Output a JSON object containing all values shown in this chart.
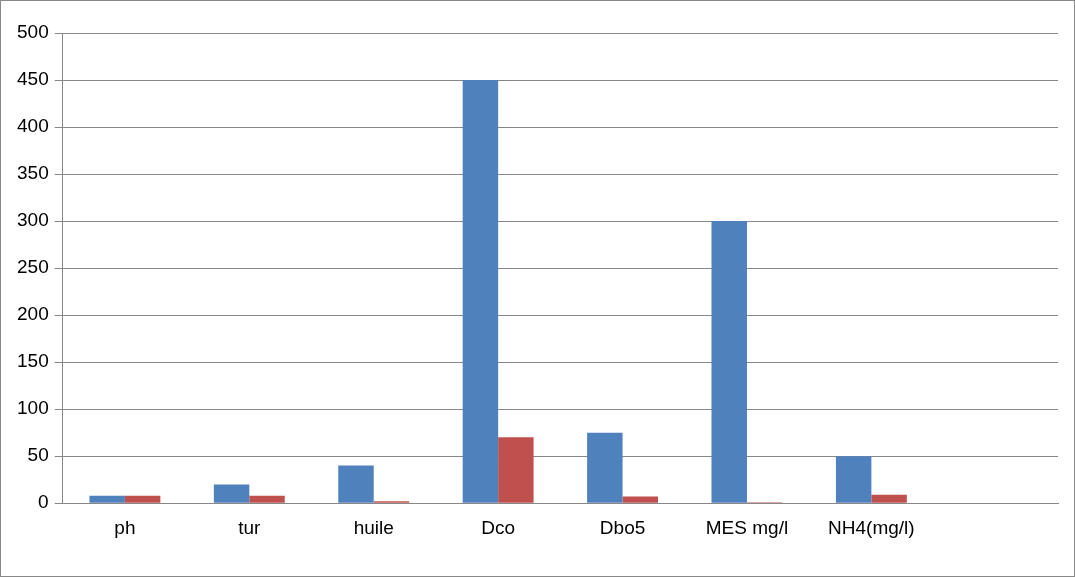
{
  "chart_data": {
    "type": "bar",
    "categories": [
      "ph",
      "tur",
      "huile",
      "Dco",
      "Dbo5",
      "MES mg/l",
      "NH4(mg/l)",
      null
    ],
    "series": [
      {
        "color": "#4f81bd",
        "values": [
          8,
          20,
          40,
          450,
          75,
          300,
          50,
          null
        ]
      },
      {
        "color": "#c0504d",
        "values": [
          8,
          8,
          2,
          70,
          7,
          1,
          9,
          null
        ]
      }
    ],
    "ylim": [
      0,
      500
    ],
    "yticks": [
      0,
      50,
      100,
      150,
      200,
      250,
      300,
      350,
      400,
      450,
      500
    ],
    "grid": "y",
    "legend": false
  }
}
